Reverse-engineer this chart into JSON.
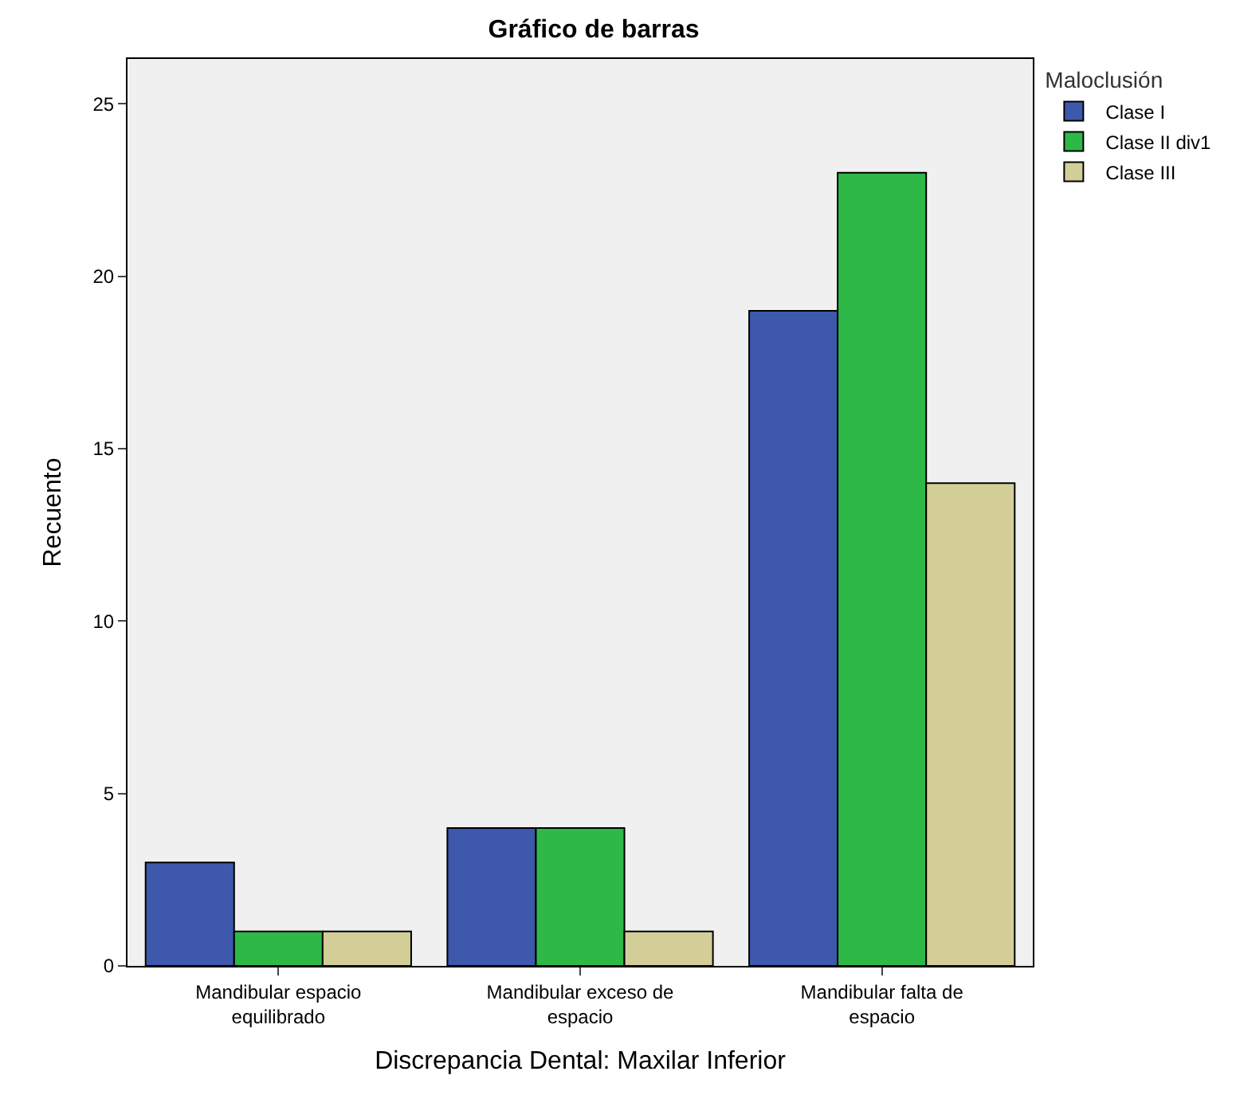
{
  "chart_data": {
    "type": "bar",
    "title": "Gráfico de barras",
    "xlabel": "Discrepancia Dental: Maxilar Inferior",
    "ylabel": "Recuento",
    "legend_title": "Maloclusión",
    "categories": [
      "Mandibular espacio equilibrado",
      "Mandibular exceso de espacio",
      "Mandibular falta de espacio"
    ],
    "series": [
      {
        "name": "Clase I",
        "color": "#3e58ac",
        "values": [
          3,
          4,
          19
        ]
      },
      {
        "name": "Clase II div1",
        "color": "#2eb848",
        "values": [
          1,
          4,
          23
        ]
      },
      {
        "name": "Clase III",
        "color": "#d3ce97",
        "values": [
          1,
          1,
          14
        ]
      }
    ],
    "ylim": [
      0,
      26.3
    ],
    "yticks": [
      0,
      5,
      10,
      15,
      20,
      25
    ],
    "grid": false,
    "legend": "top right"
  }
}
